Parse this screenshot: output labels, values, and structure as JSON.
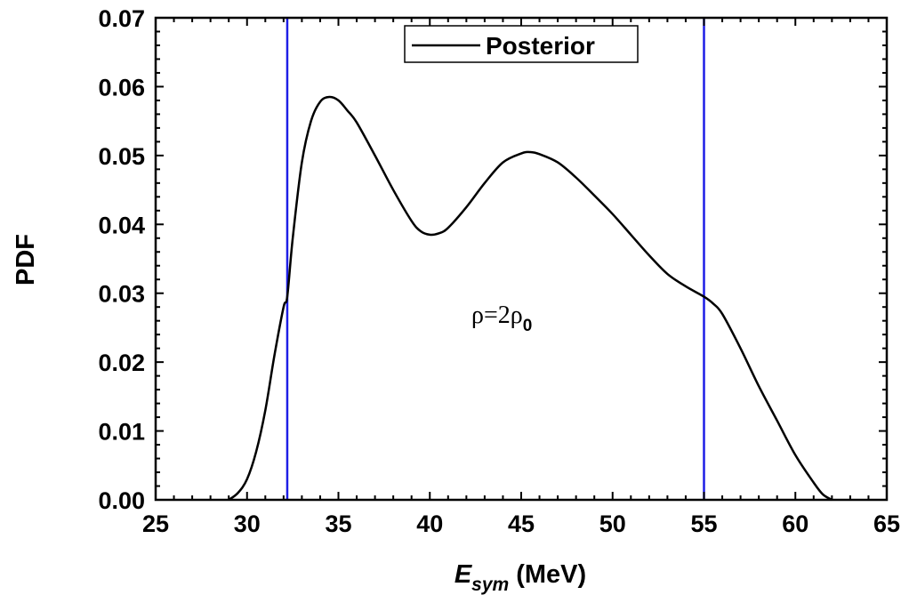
{
  "chart_data": {
    "type": "line",
    "xlabel": "E",
    "xlabel_sub": "sym",
    "xlabel_unit": "(MeV)",
    "ylabel": "PDF",
    "xlim": [
      25,
      65
    ],
    "ylim": [
      0,
      0.07
    ],
    "x_ticks": [
      "25",
      "30",
      "35",
      "40",
      "45",
      "50",
      "55",
      "60",
      "65"
    ],
    "y_ticks": [
      "0.00",
      "0.01",
      "0.02",
      "0.03",
      "0.04",
      "0.05",
      "0.06",
      "0.07"
    ],
    "legend": {
      "placement": "top-center",
      "label": "Posterior"
    },
    "annotation": {
      "base": "ρ=2ρ",
      "sub": "0"
    },
    "series": [
      {
        "name": "Posterior",
        "color": "#000000",
        "x": [
          29.0,
          29.5,
          30.0,
          30.5,
          31.0,
          31.5,
          32.0,
          32.2,
          32.5,
          33.0,
          33.5,
          34.0,
          34.5,
          35.0,
          35.5,
          36.0,
          37.0,
          38.0,
          39.0,
          39.5,
          40.0,
          40.5,
          41.0,
          42.0,
          43.0,
          44.0,
          45.0,
          45.5,
          46.0,
          47.0,
          48.0,
          49.0,
          50.0,
          51.0,
          52.0,
          53.0,
          54.0,
          55.0,
          55.5,
          56.0,
          57.0,
          58.0,
          59.0,
          60.0,
          61.0,
          61.5,
          62.0
        ],
        "y": [
          0.0,
          0.001,
          0.003,
          0.007,
          0.013,
          0.021,
          0.028,
          0.0295,
          0.038,
          0.049,
          0.055,
          0.0578,
          0.0585,
          0.058,
          0.0565,
          0.0548,
          0.05,
          0.045,
          0.0405,
          0.039,
          0.0385,
          0.0387,
          0.0395,
          0.0425,
          0.046,
          0.049,
          0.0503,
          0.0505,
          0.0502,
          0.049,
          0.0468,
          0.0442,
          0.0415,
          0.0385,
          0.0355,
          0.0328,
          0.031,
          0.0295,
          0.0285,
          0.027,
          0.022,
          0.0165,
          0.0115,
          0.0065,
          0.0025,
          0.0008,
          0.0
        ]
      }
    ],
    "vlines": [
      {
        "x": 32.2,
        "color": "#1e1ee6"
      },
      {
        "x": 55.0,
        "color": "#1e1ee6"
      }
    ]
  }
}
